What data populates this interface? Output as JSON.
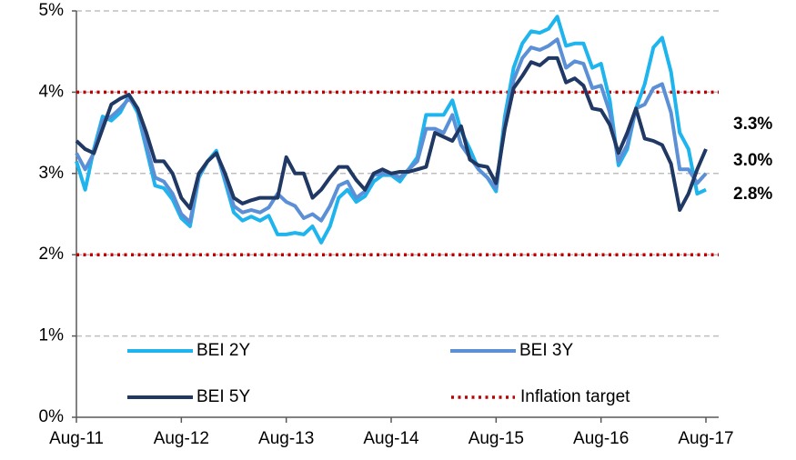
{
  "chart_data": {
    "type": "line",
    "categories": [
      "Aug-11",
      null,
      null,
      null,
      null,
      null,
      null,
      null,
      null,
      null,
      null,
      null,
      "Aug-12",
      null,
      null,
      null,
      null,
      null,
      null,
      null,
      null,
      null,
      null,
      null,
      "Aug-13",
      null,
      null,
      null,
      null,
      null,
      null,
      null,
      null,
      null,
      null,
      null,
      "Aug-14",
      null,
      null,
      null,
      null,
      null,
      null,
      null,
      null,
      null,
      null,
      null,
      "Aug-15",
      null,
      null,
      null,
      null,
      null,
      null,
      null,
      null,
      null,
      null,
      null,
      "Aug-16",
      null,
      null,
      null,
      null,
      null,
      null,
      null,
      null,
      null,
      null,
      null,
      "Aug-17"
    ],
    "series": [
      {
        "name": "BEI 2Y",
        "color": "#1eb4ee",
        "label_color": "#33c3ea",
        "values": [
          3.15,
          2.8,
          3.3,
          3.7,
          3.65,
          3.75,
          3.95,
          3.75,
          3.3,
          2.85,
          2.82,
          2.68,
          2.45,
          2.35,
          2.95,
          3.15,
          3.28,
          2.9,
          2.52,
          2.42,
          2.47,
          2.42,
          2.48,
          2.25,
          2.25,
          2.27,
          2.25,
          2.35,
          2.15,
          2.35,
          2.7,
          2.8,
          2.65,
          2.72,
          2.9,
          2.98,
          2.98,
          2.9,
          3.05,
          3.2,
          3.72,
          3.72,
          3.72,
          3.9,
          3.52,
          3.3,
          3.05,
          2.95,
          2.78,
          3.7,
          4.3,
          4.6,
          4.75,
          4.73,
          4.78,
          4.93,
          4.57,
          4.6,
          4.6,
          4.3,
          4.35,
          3.9,
          3.1,
          3.3,
          3.8,
          4.1,
          4.55,
          4.67,
          4.25,
          3.5,
          3.3,
          2.75,
          2.8
        ],
        "value_labels": [
          null,
          null,
          null,
          null,
          null,
          null,
          null,
          null,
          null,
          null,
          null,
          null,
          null,
          null,
          null,
          null,
          null,
          null,
          null,
          null,
          null,
          null,
          null,
          null,
          null,
          null,
          null,
          null,
          null,
          null,
          null,
          null,
          null,
          null,
          null,
          null,
          null,
          null,
          null,
          null,
          null,
          null,
          null,
          null,
          null,
          null,
          null,
          null,
          null,
          null,
          null,
          null,
          null,
          null,
          null,
          null,
          null,
          null,
          null,
          null,
          null,
          null,
          null,
          null,
          null,
          null,
          null,
          null,
          null,
          null,
          null,
          null,
          "2.8%"
        ]
      },
      {
        "name": "BEI 3Y",
        "color": "#5b8fd6",
        "label_color": "#2e75b6",
        "values": [
          3.25,
          3.05,
          3.25,
          3.65,
          3.7,
          3.8,
          3.92,
          3.8,
          3.35,
          2.95,
          2.9,
          2.75,
          2.5,
          2.4,
          2.98,
          3.15,
          3.25,
          2.95,
          2.6,
          2.52,
          2.55,
          2.52,
          2.58,
          2.75,
          2.65,
          2.6,
          2.45,
          2.5,
          2.42,
          2.6,
          2.85,
          2.9,
          2.7,
          2.78,
          2.98,
          3.0,
          3.0,
          2.95,
          3.05,
          3.15,
          3.55,
          3.55,
          3.5,
          3.72,
          3.35,
          3.2,
          3.05,
          2.95,
          2.82,
          3.6,
          4.15,
          4.42,
          4.55,
          4.52,
          4.57,
          4.65,
          4.3,
          4.38,
          4.35,
          4.05,
          4.08,
          3.75,
          3.15,
          3.35,
          3.8,
          3.85,
          4.05,
          4.1,
          3.75,
          3.05,
          3.05,
          2.88,
          3.0
        ],
        "value_labels": [
          null,
          null,
          null,
          null,
          null,
          null,
          null,
          null,
          null,
          null,
          null,
          null,
          null,
          null,
          null,
          null,
          null,
          null,
          null,
          null,
          null,
          null,
          null,
          null,
          null,
          null,
          null,
          null,
          null,
          null,
          null,
          null,
          null,
          null,
          null,
          null,
          null,
          null,
          null,
          null,
          null,
          null,
          null,
          null,
          null,
          null,
          null,
          null,
          null,
          null,
          null,
          null,
          null,
          null,
          null,
          null,
          null,
          null,
          null,
          null,
          null,
          null,
          null,
          null,
          null,
          null,
          null,
          null,
          null,
          null,
          null,
          null,
          "3.0%"
        ]
      },
      {
        "name": "BEI 5Y",
        "color": "#1f3864",
        "label_color": "#1f3864",
        "values": [
          3.4,
          3.3,
          3.25,
          3.55,
          3.85,
          3.92,
          3.97,
          3.8,
          3.5,
          3.15,
          3.15,
          3.0,
          2.7,
          2.57,
          3.0,
          3.15,
          3.25,
          3.0,
          2.7,
          2.63,
          2.67,
          2.7,
          2.7,
          2.7,
          3.2,
          3.0,
          3.0,
          2.7,
          2.8,
          2.95,
          3.08,
          3.08,
          2.92,
          2.8,
          3.0,
          3.05,
          3.0,
          3.02,
          3.02,
          3.05,
          3.08,
          3.5,
          3.45,
          3.4,
          3.58,
          3.17,
          3.1,
          3.08,
          2.88,
          3.55,
          4.05,
          4.2,
          4.37,
          4.33,
          4.42,
          4.42,
          4.12,
          4.17,
          4.08,
          3.8,
          3.78,
          3.6,
          3.25,
          3.5,
          3.8,
          3.43,
          3.4,
          3.35,
          3.12,
          2.55,
          2.75,
          3.05,
          3.3
        ],
        "value_labels": [
          null,
          null,
          null,
          null,
          null,
          null,
          null,
          null,
          null,
          null,
          null,
          null,
          null,
          null,
          null,
          null,
          null,
          null,
          null,
          null,
          null,
          null,
          null,
          null,
          null,
          null,
          null,
          null,
          null,
          null,
          null,
          null,
          null,
          null,
          null,
          null,
          null,
          null,
          null,
          null,
          null,
          null,
          null,
          null,
          null,
          null,
          null,
          null,
          null,
          null,
          null,
          null,
          null,
          null,
          null,
          null,
          null,
          null,
          null,
          null,
          null,
          null,
          null,
          null,
          null,
          null,
          null,
          null,
          null,
          null,
          null,
          null,
          "3.3%"
        ]
      }
    ],
    "inflation_target": {
      "name": "Inflation target",
      "color": "#c00000",
      "values": [
        2,
        4
      ]
    },
    "ylim": [
      0,
      5
    ],
    "yticks": [
      {
        "value": 0,
        "label": "0%"
      },
      {
        "value": 1,
        "label": "1%"
      },
      {
        "value": 2,
        "label": "2%"
      },
      {
        "value": 3,
        "label": "3%"
      },
      {
        "value": 4,
        "label": "4%"
      },
      {
        "value": 5,
        "label": "5%"
      }
    ],
    "grid": true
  }
}
